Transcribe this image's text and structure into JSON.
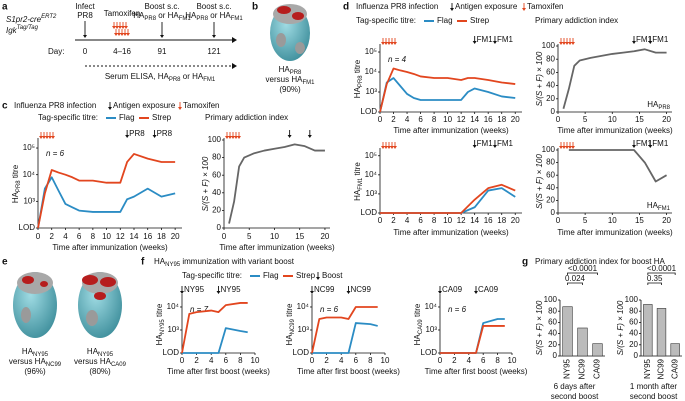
{
  "panels": {
    "a": {
      "letter": "a",
      "mouse1": [
        "S1pr2-cre",
        "ERT2"
      ],
      "mouse2": [
        "Igk",
        "Tag/Tag"
      ],
      "infect": "Infect",
      "infect2": "PR8",
      "tamoxifen": "Tamoxifen",
      "boost": "Boost s.c.",
      "boost1": [
        "HA",
        "PR8",
        " or HA",
        "FM1"
      ],
      "boost2": [
        "HA",
        "PR8",
        " or HA",
        "FM1"
      ],
      "day": "Day:",
      "days": [
        "0",
        "4–16",
        "91",
        "121"
      ],
      "serum": [
        "Serum ELISA, HA",
        "PR8",
        " or HA",
        "FM1"
      ]
    },
    "b": {
      "letter": "b",
      "cap1": [
        "HA",
        "PR8"
      ],
      "cap2": [
        "versus HA",
        "FM1"
      ],
      "cap3": "(90%)"
    },
    "c": {
      "letter": "c",
      "title": "Influenza PR8 infection",
      "exposure": "Antigen exposure",
      "tam": "Tamoxifen",
      "legendTitle": "Tag-specific titre:",
      "legend": [
        {
          "text": "Flag",
          "color": "#2b8cc4"
        },
        {
          "text": "Strep",
          "color": "#e2461f"
        }
      ],
      "rightTitle": "Primary addiction index"
    },
    "d": {
      "letter": "d",
      "title": "Influenza PR8 infection",
      "exposure": "Antigen exposure",
      "tam": "Tamoxifen",
      "legendTitle": "Tag-specific titre:",
      "legend": [
        {
          "text": "Flag",
          "color": "#2b8cc4"
        },
        {
          "text": "Strep",
          "color": "#e2461f"
        }
      ],
      "rightTitle": "Primary addiction index"
    },
    "e": {
      "letter": "e",
      "cap1": [
        "HA",
        "NY95"
      ],
      "cap2": [
        "versus HA",
        "NC99"
      ],
      "cap3": "(96%)",
      "cap4": [
        "HA",
        "NY95"
      ],
      "cap5": [
        "versus HA",
        "CA09"
      ],
      "cap6": "(80%)"
    },
    "f": {
      "letter": "f",
      "title": [
        "HA",
        "NY95",
        " immunization with variant boost"
      ],
      "legendTitle": "Tag-specific titre:",
      "legend": [
        {
          "text": "Flag",
          "color": "#2b8cc4"
        },
        {
          "text": "Strep",
          "color": "#e2461f"
        }
      ],
      "boost": "Boost"
    },
    "g": {
      "letter": "g",
      "title": "Primary addiction index for boost HA"
    }
  },
  "chart_data": [
    {
      "type": "line",
      "log": true,
      "ylabel": [
        "HA",
        "PR8",
        " titre"
      ],
      "xlabel": "Time after immunization (weeks)",
      "note": "n = 6",
      "xlim": [
        0,
        21
      ],
      "xticks": [
        0,
        2,
        4,
        6,
        8,
        10,
        12,
        14,
        16,
        18,
        20
      ],
      "ylim": [
        100,
        200000
      ],
      "yticks": [
        {
          "value": 100,
          "label": "LOD"
        },
        {
          "value": 1000,
          "label": "10³"
        },
        {
          "value": 10000,
          "label": "10⁴"
        },
        {
          "value": 100000,
          "label": "10⁵"
        }
      ],
      "x": [
        0,
        1,
        2,
        3,
        4,
        5,
        6,
        8,
        10,
        12,
        13,
        14,
        16,
        18,
        20
      ],
      "series": [
        {
          "color": "#2b8cc4",
          "values": [
            100,
            3000,
            8000,
            2500,
            800,
            600,
            450,
            400,
            400,
            400,
            1200,
            1500,
            3000,
            1500,
            2000
          ]
        },
        {
          "color": "#e2461f",
          "values": [
            100,
            2000,
            15000,
            12000,
            10000,
            8000,
            6000,
            6000,
            5000,
            5000,
            30000,
            60000,
            40000,
            30000,
            30000
          ]
        }
      ],
      "annotations": [
        {
          "x": 13,
          "text": "PR8"
        },
        {
          "x": 17,
          "text": "PR8"
        }
      ]
    },
    {
      "type": "line",
      "ylabel": "S/(S + F) × 100",
      "xlabel": "Time after immunization (weeks)",
      "xlim": [
        0,
        21
      ],
      "xticks": [
        0,
        5,
        10,
        15,
        20
      ],
      "ylim": [
        0,
        100
      ],
      "yticks": [
        0,
        20,
        40,
        60,
        80,
        100
      ],
      "x": [
        1,
        2,
        3,
        4,
        6,
        8,
        10,
        12,
        14,
        16,
        18,
        20
      ],
      "series": [
        {
          "color": "#666666",
          "values": [
            5,
            30,
            70,
            80,
            85,
            88,
            90,
            92,
            95,
            93,
            88,
            88
          ]
        }
      ],
      "annotations": [
        {
          "x": 13
        },
        {
          "x": 17
        }
      ]
    },
    {
      "type": "line",
      "log": true,
      "ylabel": [
        "HA",
        "PR8",
        " titre"
      ],
      "xlabel": "Time after immunization (weeks)",
      "note": "n = 4",
      "xlim": [
        0,
        21
      ],
      "xticks": [
        0,
        2,
        4,
        6,
        8,
        10,
        12,
        14,
        16,
        18,
        20
      ],
      "ylim": [
        100,
        200000
      ],
      "yticks": [
        {
          "value": 100,
          "label": "LOD"
        },
        {
          "value": 1000,
          "label": "10³"
        },
        {
          "value": 10000,
          "label": "10⁴"
        },
        {
          "value": 100000,
          "label": "10⁵"
        }
      ],
      "x": [
        0,
        1,
        2,
        3,
        4,
        5,
        6,
        8,
        10,
        12,
        13,
        14,
        16,
        18,
        20
      ],
      "series": [
        {
          "color": "#2b8cc4",
          "values": [
            100,
            3000,
            5000,
            2000,
            800,
            500,
            400,
            400,
            400,
            400,
            1000,
            1500,
            1000,
            600,
            500
          ]
        },
        {
          "color": "#e2461f",
          "values": [
            100,
            2500,
            15000,
            12000,
            10000,
            8000,
            6000,
            5000,
            5000,
            4000,
            5000,
            5000,
            4000,
            3000,
            2500
          ]
        }
      ],
      "annotations": [
        {
          "x": 14,
          "text": "FM1"
        },
        {
          "x": 17,
          "text": "FM1"
        }
      ]
    },
    {
      "type": "line",
      "ylabel": "S/(S + F) × 100",
      "xlabel": "Time after immunization (weeks)",
      "corner": [
        "HA",
        "PR8"
      ],
      "xlim": [
        0,
        21
      ],
      "xticks": [
        0,
        5,
        10,
        15,
        20
      ],
      "ylim": [
        0,
        100
      ],
      "yticks": [
        0,
        20,
        40,
        60,
        80,
        100
      ],
      "x": [
        1,
        2,
        3,
        4,
        6,
        8,
        10,
        12,
        14,
        16,
        18,
        20
      ],
      "series": [
        {
          "color": "#666666",
          "values": [
            5,
            35,
            70,
            78,
            82,
            85,
            88,
            90,
            92,
            95,
            90,
            90
          ]
        }
      ],
      "annotations": [
        {
          "x": 14,
          "text": "FM1"
        },
        {
          "x": 17,
          "text": "FM1"
        }
      ]
    },
    {
      "type": "line",
      "log": true,
      "ylabel": [
        "HA",
        "FM1",
        " titre"
      ],
      "xlabel": "Time after immunization (weeks)",
      "xlim": [
        0,
        21
      ],
      "xticks": [
        0,
        2,
        4,
        6,
        8,
        10,
        12,
        14,
        16,
        18,
        20
      ],
      "ylim": [
        100,
        200000
      ],
      "yticks": [
        {
          "value": 100,
          "label": "LOD"
        },
        {
          "value": 1000,
          "label": "10³"
        },
        {
          "value": 10000,
          "label": "10⁴"
        },
        {
          "value": 100000,
          "label": "10⁵"
        }
      ],
      "x": [
        0,
        2,
        4,
        6,
        8,
        10,
        12,
        14,
        16,
        18,
        20
      ],
      "series": [
        {
          "color": "#2b8cc4",
          "values": [
            100,
            100,
            100,
            100,
            100,
            100,
            100,
            200,
            1500,
            2000,
            700
          ]
        },
        {
          "color": "#e2461f",
          "values": [
            100,
            100,
            100,
            100,
            100,
            100,
            100,
            500,
            2000,
            3000,
            1500
          ]
        }
      ],
      "annotations": [
        {
          "x": 14,
          "text": "FM1"
        },
        {
          "x": 17,
          "text": "FM1"
        }
      ]
    },
    {
      "type": "line",
      "ylabel": "S/(S + F) × 100",
      "xlabel": "Time after immunization (weeks)",
      "corner": [
        "HA",
        "FM1"
      ],
      "xlim": [
        0,
        21
      ],
      "xticks": [
        0,
        5,
        10,
        15,
        20
      ],
      "ylim": [
        0,
        100
      ],
      "yticks": [
        0,
        20,
        40,
        60,
        80,
        100
      ],
      "x": [
        2,
        3,
        14,
        16,
        18,
        20
      ],
      "series": [
        {
          "color": "#666666",
          "values": [
            100,
            100,
            100,
            80,
            50,
            60
          ]
        }
      ],
      "annotations": [
        {
          "x": 14,
          "text": "FM1"
        },
        {
          "x": 17,
          "text": "FM1"
        }
      ]
    },
    {
      "type": "line",
      "log": true,
      "ylabel": [
        "HA",
        "NY95",
        " titre"
      ],
      "xlabel": "Time after first boost (weeks)",
      "note": "n = 7",
      "xlim": [
        0,
        10
      ],
      "xticks": [
        0,
        2,
        4,
        6,
        8,
        10
      ],
      "ylim": [
        100,
        30000
      ],
      "yticks": [
        {
          "value": 100,
          "label": "LOD"
        },
        {
          "value": 1000,
          "label": "10³"
        },
        {
          "value": 10000,
          "label": "10⁴"
        }
      ],
      "x": [
        0,
        1,
        2,
        4,
        5,
        6,
        8,
        9
      ],
      "series": [
        {
          "color": "#2b8cc4",
          "values": [
            100,
            100,
            100,
            100,
            100,
            1200,
            900,
            800
          ]
        },
        {
          "color": "#e2461f",
          "values": [
            100,
            5000,
            6000,
            7000,
            6000,
            12000,
            15000,
            15000
          ]
        }
      ],
      "annotations": [
        {
          "x": 0,
          "text": "NY95"
        },
        {
          "x": 5,
          "text": "NY95"
        }
      ]
    },
    {
      "type": "line",
      "log": true,
      "ylabel": [
        "HA",
        "NC99",
        " titre"
      ],
      "xlabel": "Time after first boost (weeks)",
      "note": "n = 6",
      "xlim": [
        0,
        10
      ],
      "xticks": [
        0,
        2,
        4,
        6,
        8,
        10
      ],
      "ylim": [
        100,
        30000
      ],
      "yticks": [
        {
          "value": 100,
          "label": "LOD"
        },
        {
          "value": 1000,
          "label": "10³"
        },
        {
          "value": 10000,
          "label": "10⁴"
        }
      ],
      "x": [
        0,
        1,
        2,
        4,
        5,
        6,
        8,
        9
      ],
      "series": [
        {
          "color": "#2b8cc4",
          "values": [
            100,
            100,
            100,
            100,
            100,
            2000,
            1800,
            1500
          ]
        },
        {
          "color": "#e2461f",
          "values": [
            100,
            3000,
            3500,
            3500,
            3000,
            10000,
            10000,
            10000
          ]
        }
      ],
      "annotations": [
        {
          "x": 0,
          "text": "NC99"
        },
        {
          "x": 5,
          "text": "NC99"
        }
      ]
    },
    {
      "type": "line",
      "log": true,
      "ylabel": [
        "HA",
        "CA09",
        " titre"
      ],
      "xlabel": "Time after first boost (weeks)",
      "note": "n = 6",
      "xlim": [
        0,
        10
      ],
      "xticks": [
        0,
        2,
        4,
        6,
        8,
        10
      ],
      "ylim": [
        100,
        30000
      ],
      "yticks": [
        {
          "value": 100,
          "label": "LOD"
        },
        {
          "value": 1000,
          "label": "10³"
        },
        {
          "value": 10000,
          "label": "10⁴"
        }
      ],
      "x": [
        0,
        1,
        2,
        4,
        5,
        6,
        8,
        9
      ],
      "series": [
        {
          "color": "#2b8cc4",
          "values": [
            100,
            100,
            100,
            100,
            100,
            2000,
            3000,
            3000
          ]
        },
        {
          "color": "#e2461f",
          "values": [
            100,
            100,
            100,
            100,
            100,
            1500,
            1500,
            1500
          ]
        }
      ],
      "annotations": [
        {
          "x": 0,
          "text": "CA09"
        },
        {
          "x": 5,
          "text": "CA09"
        }
      ]
    },
    {
      "type": "bar",
      "ylabel": "S/(S + F) × 100",
      "categories": [
        "NY95",
        "NC99",
        "CA09"
      ],
      "values": [
        88,
        50,
        22
      ],
      "color": "#bbbbbb",
      "ylim": [
        0,
        100
      ],
      "yticks": [
        0,
        20,
        40,
        60,
        80,
        100
      ],
      "caption": [
        "6 days after",
        "second boost"
      ],
      "pvalues": [
        {
          "from": 0,
          "to": 2,
          "text": "<0.0001"
        },
        {
          "from": 0,
          "to": 1,
          "text": "0.024"
        }
      ]
    },
    {
      "type": "bar",
      "ylabel": "S/(S + F) × 100",
      "categories": [
        "NY95",
        "NC99",
        "CA09"
      ],
      "values": [
        92,
        85,
        22
      ],
      "color": "#bbbbbb",
      "ylim": [
        0,
        100
      ],
      "yticks": [
        0,
        20,
        40,
        60,
        80,
        100
      ],
      "caption": [
        "1 month after",
        "second boost"
      ],
      "pvalues": [
        {
          "from": 0,
          "to": 2,
          "text": "<0.0001"
        },
        {
          "from": 0,
          "to": 1,
          "text": "0.35"
        }
      ]
    }
  ]
}
